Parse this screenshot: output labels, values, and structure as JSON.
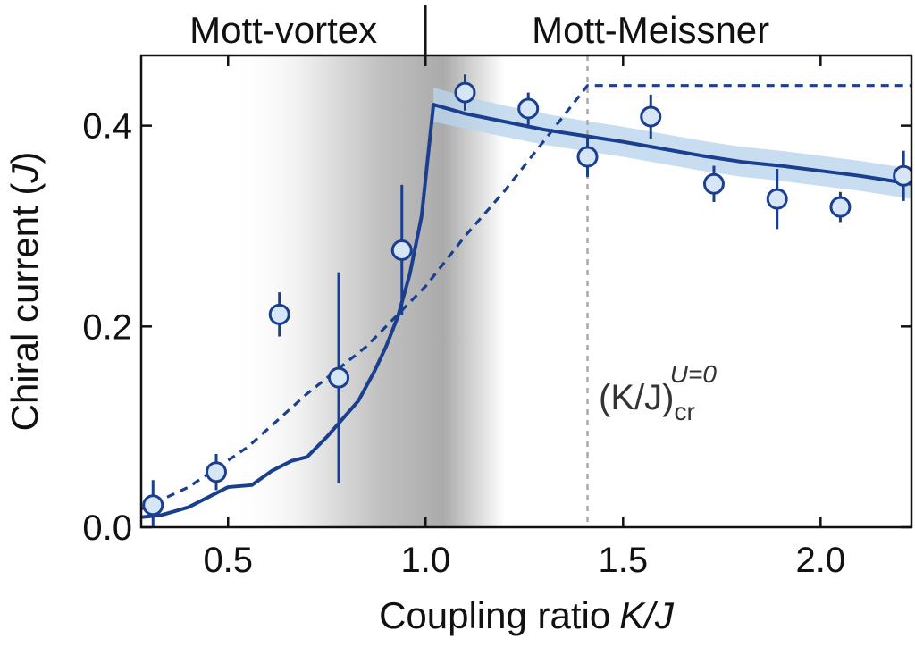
{
  "chart_data": {
    "type": "scatter",
    "xlabel": "Coupling ratio",
    "xlabel_var": "K/J",
    "ylabel": "Chiral current (",
    "ylabel_var": "J",
    "ylabel_end": ")",
    "xlim": [
      0.28,
      2.23
    ],
    "ylim": [
      0.0,
      0.47
    ],
    "xticks": [
      0.5,
      1.0,
      1.5,
      2.0
    ],
    "xtick_labels": [
      "0.5",
      "1.0",
      "1.5",
      "2.0"
    ],
    "yticks": [
      0.0,
      0.2,
      0.4
    ],
    "ytick_labels": [
      "0.0",
      "0.2",
      "0.4"
    ],
    "regions": [
      {
        "label": "Mott-vortex",
        "x_range": [
          0.28,
          1.0
        ]
      },
      {
        "label": "Mott-Meissner",
        "x_range": [
          1.0,
          2.23
        ]
      }
    ],
    "phase_boundary_x": 1.0,
    "critical_line": {
      "x": 1.41,
      "label_main": "(K/J)",
      "label_sub": "cr",
      "label_sup": "U=0"
    },
    "colors": {
      "series": "#1b3f8f",
      "band": "#bcd4ee",
      "marker_fill": "#d7e6f6",
      "critical": "#aaaaaa",
      "shade": "#a6a6a6"
    },
    "grid": false,
    "series": [
      {
        "kind": "points_with_errorbars",
        "x": [
          0.31,
          0.47,
          0.63,
          0.78,
          0.94,
          1.1,
          1.26,
          1.41,
          1.57,
          1.73,
          1.89,
          2.05,
          2.21
        ],
        "y": [
          0.022,
          0.055,
          0.212,
          0.149,
          0.276,
          0.433,
          0.417,
          0.369,
          0.409,
          0.342,
          0.327,
          0.319,
          0.35
        ],
        "yerr": [
          0.025,
          0.018,
          0.022,
          0.105,
          0.065,
          0.018,
          0.016,
          0.02,
          0.022,
          0.018,
          0.03,
          0.015,
          0.025
        ]
      },
      {
        "kind": "line",
        "style": "solid",
        "x": [
          0.28,
          0.33,
          0.4,
          0.45,
          0.5,
          0.56,
          0.61,
          0.66,
          0.7,
          0.75,
          0.79,
          0.83,
          0.87,
          0.9,
          0.93,
          0.96,
          0.99,
          1.02,
          1.1,
          1.2,
          1.3,
          1.4,
          1.5,
          1.6,
          1.7,
          1.8,
          1.9,
          2.0,
          2.1,
          2.23
        ],
        "y": [
          0.01,
          0.012,
          0.02,
          0.03,
          0.04,
          0.042,
          0.056,
          0.066,
          0.07,
          0.09,
          0.108,
          0.126,
          0.155,
          0.18,
          0.21,
          0.252,
          0.31,
          0.421,
          0.412,
          0.404,
          0.396,
          0.39,
          0.384,
          0.377,
          0.37,
          0.364,
          0.36,
          0.355,
          0.35,
          0.342
        ]
      },
      {
        "kind": "band",
        "x": [
          1.02,
          1.1,
          1.2,
          1.3,
          1.4,
          1.5,
          1.6,
          1.7,
          1.8,
          1.9,
          2.0,
          2.1,
          2.23
        ],
        "lower": [
          0.404,
          0.397,
          0.389,
          0.381,
          0.375,
          0.369,
          0.362,
          0.355,
          0.349,
          0.345,
          0.34,
          0.335,
          0.327
        ],
        "upper": [
          0.438,
          0.429,
          0.42,
          0.412,
          0.405,
          0.399,
          0.392,
          0.385,
          0.379,
          0.375,
          0.37,
          0.365,
          0.357
        ]
      },
      {
        "kind": "line",
        "style": "dashed",
        "x": [
          0.28,
          0.4,
          0.55,
          0.7,
          0.85,
          1.0,
          1.1,
          1.2,
          1.3,
          1.41,
          2.23
        ],
        "y": [
          0.018,
          0.04,
          0.08,
          0.133,
          0.18,
          0.24,
          0.29,
          0.335,
          0.385,
          0.44,
          0.44
        ]
      }
    ]
  }
}
